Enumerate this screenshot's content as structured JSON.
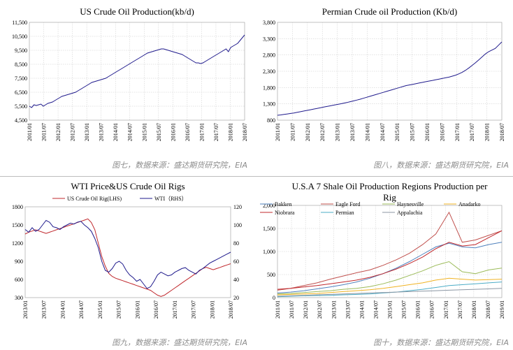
{
  "captions": [
    "图七，数据来源：盛达期货研究院，EIA",
    "图八，数据来源：盛达期货研究院，EIA",
    "图九，数据来源：盛达期货研究院，EIA",
    "图十，数据来源：盛达期货研究院，EIA"
  ],
  "chart_data": [
    {
      "type": "line",
      "title": "US Crude Oil Production(kb/d)",
      "xlabel": "",
      "ylabel": "",
      "ylim": [
        4500,
        11500
      ],
      "yticks": [
        "4,500",
        "5,500",
        "6,500",
        "7,500",
        "8,500",
        "9,500",
        "10,500",
        "11,500"
      ],
      "xticks": [
        "2011/01",
        "2011/07",
        "2012/01",
        "2012/07",
        "2013/01",
        "2013/07",
        "2014/01",
        "2014/07",
        "2015/01",
        "2015/07",
        "2016/01",
        "2016/07",
        "2017/01",
        "2017/07",
        "2018/01",
        "2018/07"
      ],
      "grid": true,
      "series": [
        {
          "color": "#1f1a8c",
          "values": [
            5500,
            5400,
            5600,
            5550,
            5600,
            5650,
            5500,
            5600,
            5700,
            5750,
            5800,
            5900,
            6000,
            6100,
            6200,
            6250,
            6300,
            6350,
            6400,
            6450,
            6500,
            6600,
            6700,
            6800,
            6900,
            7000,
            7100,
            7200,
            7250,
            7300,
            7350,
            7400,
            7450,
            7500,
            7600,
            7700,
            7800,
            7900,
            8000,
            8100,
            8200,
            8300,
            8400,
            8500,
            8600,
            8700,
            8800,
            8900,
            9000,
            9100,
            9200,
            9300,
            9350,
            9400,
            9450,
            9500,
            9550,
            9600,
            9600,
            9550,
            9500,
            9450,
            9400,
            9350,
            9300,
            9250,
            9200,
            9100,
            9000,
            8900,
            8800,
            8700,
            8600,
            8600,
            8550,
            8600,
            8700,
            8800,
            8900,
            9000,
            9100,
            9200,
            9300,
            9400,
            9500,
            9600,
            9400,
            9700,
            9800,
            9900,
            10000,
            10200,
            10400,
            10600
          ]
        }
      ]
    },
    {
      "type": "line",
      "title": "Permian Crude oil Production (Kb/d)",
      "xlabel": "",
      "ylabel": "",
      "ylim": [
        800,
        3800
      ],
      "yticks": [
        "800",
        "1,300",
        "1,800",
        "2,300",
        "2,800",
        "3,300",
        "3,800"
      ],
      "xticks": [
        "2011/01",
        "2011/07",
        "2012/01",
        "2012/07",
        "2013/01",
        "2013/07",
        "2014/01",
        "2014/07",
        "2015/01",
        "2015/07",
        "2016/01",
        "2016/07",
        "2017/01",
        "2017/07",
        "2018/01",
        "2018/07"
      ],
      "grid": true,
      "series": [
        {
          "color": "#1f1a8c",
          "values": [
            950,
            960,
            975,
            990,
            1005,
            1020,
            1040,
            1060,
            1080,
            1100,
            1120,
            1140,
            1160,
            1180,
            1200,
            1220,
            1240,
            1260,
            1280,
            1300,
            1320,
            1340,
            1365,
            1390,
            1415,
            1440,
            1470,
            1500,
            1530,
            1560,
            1590,
            1620,
            1650,
            1680,
            1710,
            1740,
            1770,
            1800,
            1830,
            1860,
            1880,
            1900,
            1920,
            1940,
            1960,
            1980,
            2000,
            2020,
            2040,
            2060,
            2080,
            2100,
            2120,
            2150,
            2180,
            2220,
            2270,
            2330,
            2400,
            2480,
            2560,
            2650,
            2740,
            2830,
            2900,
            2950,
            3000,
            3100,
            3200
          ]
        }
      ]
    },
    {
      "type": "line",
      "title": "WTI Price&US Crude Oil Rigs",
      "xlabel": "",
      "ylabel": "",
      "ylim": [
        300,
        1800
      ],
      "y2lim": [
        20,
        120
      ],
      "yticks": [
        "300",
        "600",
        "900",
        "1200",
        "1500",
        "1800"
      ],
      "y2ticks": [
        "20",
        "40",
        "60",
        "80",
        "100",
        "120"
      ],
      "xticks": [
        "2013/01",
        "2013/07",
        "2014/01",
        "2014/07",
        "2015/01",
        "2015/07",
        "2016/01",
        "2016/07",
        "2017/01",
        "2017/07",
        "2018/01",
        "2018/07"
      ],
      "grid": false,
      "legend": "top",
      "series": [
        {
          "name": "US Crude Oil Rig(LHS)",
          "color": "#c0282d",
          "axis": "left",
          "values": [
            1350,
            1380,
            1400,
            1420,
            1400,
            1380,
            1360,
            1380,
            1400,
            1420,
            1440,
            1460,
            1480,
            1500,
            1520,
            1540,
            1560,
            1580,
            1600,
            1540,
            1420,
            1200,
            980,
            820,
            700,
            650,
            620,
            600,
            580,
            560,
            540,
            520,
            500,
            480,
            460,
            440,
            420,
            380,
            340,
            320,
            340,
            380,
            420,
            460,
            500,
            540,
            580,
            620,
            660,
            700,
            740,
            780,
            800,
            780,
            760,
            780,
            800,
            820,
            840,
            860
          ]
        },
        {
          "name": "WTI（RHS）",
          "color": "#1f1a8c",
          "axis": "right",
          "values": [
            95,
            92,
            97,
            93,
            95,
            100,
            105,
            103,
            98,
            97,
            95,
            98,
            100,
            102,
            101,
            103,
            104,
            100,
            97,
            93,
            85,
            75,
            60,
            50,
            48,
            52,
            58,
            60,
            57,
            50,
            45,
            42,
            38,
            40,
            35,
            30,
            32,
            38,
            45,
            48,
            46,
            44,
            45,
            48,
            50,
            52,
            53,
            50,
            48,
            46,
            50,
            52,
            55,
            58,
            60,
            62,
            64,
            66,
            68,
            70
          ]
        }
      ]
    },
    {
      "type": "line",
      "title": "U.S.A 7 Shale Oil Production Regions Production per Rig",
      "xlabel": "",
      "ylabel": "",
      "ylim": [
        0,
        2000
      ],
      "yticks": [
        "0",
        "500",
        "1,000",
        "1,500",
        "2,000"
      ],
      "xticks": [
        "2011/01",
        "2011/07",
        "2012/01",
        "2012/07",
        "2013/01",
        "2013/07",
        "2014/01",
        "2014/07",
        "2015/01",
        "2015/07",
        "2016/01",
        "2016/07",
        "2017/01",
        "2017/07",
        "2018/01",
        "2018/07",
        "2019/01"
      ],
      "grid": true,
      "legend": "top",
      "series": [
        {
          "name": "Bakken",
          "color": "#4f81bd",
          "values": [
            100,
            120,
            150,
            190,
            230,
            280,
            340,
            420,
            520,
            640,
            780,
            940,
            1100,
            1180,
            1100,
            1080,
            1150,
            1200
          ]
        },
        {
          "name": "Eagle Ford",
          "color": "#c0504d",
          "values": [
            160,
            200,
            260,
            320,
            400,
            470,
            540,
            600,
            700,
            820,
            960,
            1150,
            1380,
            1850,
            1200,
            1250,
            1350,
            1450
          ]
        },
        {
          "name": "Haynesville",
          "color": "#9bbb59",
          "values": [
            80,
            90,
            110,
            130,
            150,
            180,
            200,
            240,
            300,
            380,
            480,
            580,
            700,
            780,
            560,
            520,
            600,
            640
          ]
        },
        {
          "name": "Anadarko",
          "color": "#f0b323",
          "values": [
            60,
            70,
            80,
            90,
            110,
            130,
            150,
            170,
            200,
            240,
            280,
            320,
            380,
            420,
            400,
            380,
            390,
            400
          ]
        },
        {
          "name": "Niobrara",
          "color": "#c0282d",
          "values": [
            180,
            200,
            230,
            260,
            300,
            340,
            380,
            440,
            520,
            620,
            740,
            880,
            1060,
            1200,
            1120,
            1150,
            1300,
            1450
          ]
        },
        {
          "name": "Permian",
          "color": "#4bacc6",
          "values": [
            20,
            30,
            40,
            45,
            50,
            60,
            70,
            80,
            100,
            120,
            150,
            180,
            220,
            260,
            280,
            300,
            320,
            340
          ]
        },
        {
          "name": "Appalachia",
          "color": "#8b96a3",
          "values": [
            30,
            40,
            50,
            60,
            70,
            80,
            90,
            100,
            110,
            120,
            130,
            140,
            150,
            160,
            170,
            180,
            190,
            200
          ]
        }
      ]
    }
  ]
}
